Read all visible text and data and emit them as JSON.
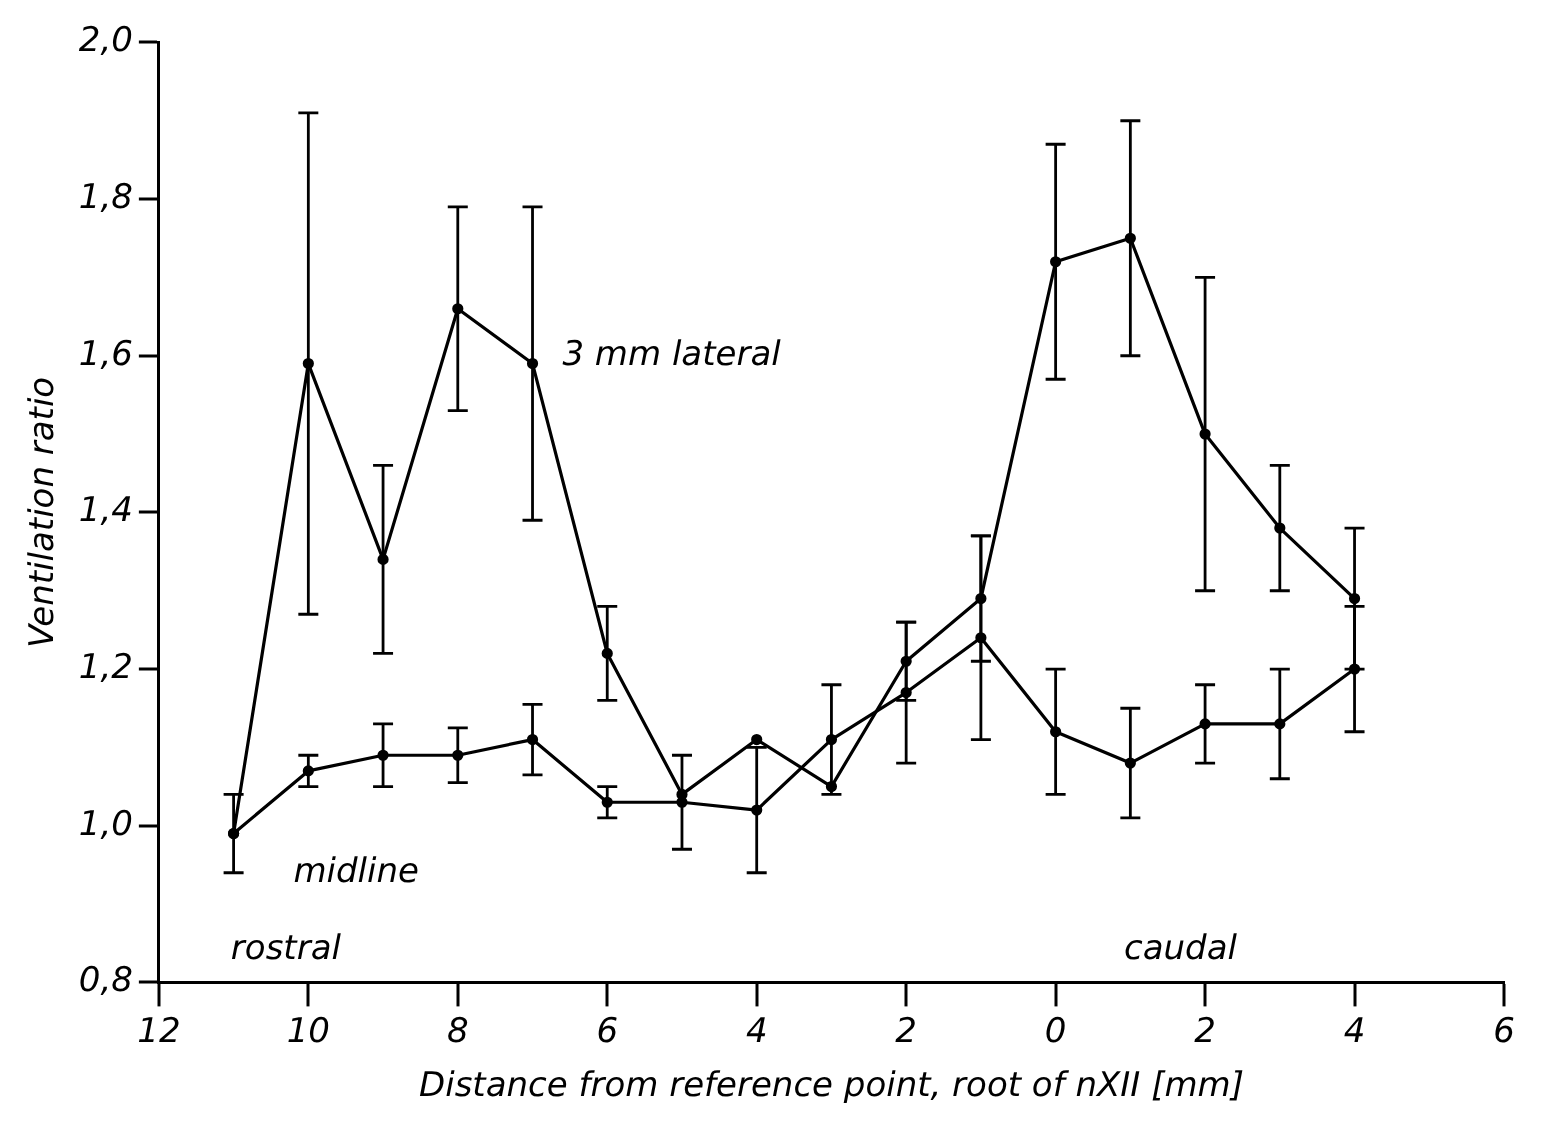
{
  "chart_data": {
    "type": "line",
    "xlabel": "Distance from reference point, root of nXII [mm]",
    "ylabel": "Ventilation ratio",
    "x": [
      -11,
      -10,
      -9,
      -8,
      -7,
      -6,
      -5,
      -4,
      -3,
      -2,
      -1,
      0,
      1,
      2,
      3,
      4
    ],
    "series": [
      {
        "name": "3 mm lateral",
        "color": "#000000",
        "values": [
          0.99,
          1.59,
          1.34,
          1.66,
          1.59,
          1.22,
          1.04,
          1.11,
          1.05,
          1.21,
          1.29,
          1.72,
          1.75,
          1.5,
          1.38,
          1.29
        ],
        "errors": [
          null,
          0.32,
          0.12,
          0.13,
          0.2,
          0.06,
          null,
          null,
          null,
          0.05,
          0.08,
          0.15,
          0.15,
          0.2,
          0.08,
          0.09
        ]
      },
      {
        "name": "midline",
        "color": "#000000",
        "values": [
          0.99,
          1.07,
          1.09,
          1.09,
          1.11,
          1.03,
          1.03,
          1.02,
          1.11,
          1.17,
          1.24,
          1.12,
          1.08,
          1.13,
          1.13,
          1.2
        ],
        "errors": [
          0.05,
          0.02,
          0.04,
          0.035,
          0.045,
          0.02,
          0.06,
          0.08,
          0.07,
          0.09,
          0.13,
          0.08,
          0.07,
          0.05,
          0.07,
          0.08
        ]
      }
    ],
    "annotations": [
      "rostral",
      "caudal"
    ],
    "xlim": [
      -12,
      6
    ],
    "xticks": [
      {
        "value": -12,
        "label": "12"
      },
      {
        "value": -10,
        "label": "10"
      },
      {
        "value": -8,
        "label": "8"
      },
      {
        "value": -6,
        "label": "6"
      },
      {
        "value": -4,
        "label": "4"
      },
      {
        "value": -2,
        "label": "2"
      },
      0,
      2,
      4,
      6
    ],
    "ylim": [
      0.8,
      2.0
    ],
    "yticks": [
      {
        "value": 0.8,
        "label": "0,8"
      },
      {
        "value": 1.0,
        "label": "1,0"
      },
      {
        "value": 1.2,
        "label": "1,2"
      },
      {
        "value": 1.4,
        "label": "1,4"
      },
      {
        "value": 1.6,
        "label": "1,6"
      },
      {
        "value": 1.8,
        "label": "1,8"
      },
      {
        "value": 2.0,
        "label": "2,0"
      }
    ],
    "grid": false,
    "legend": false,
    "marker": "circle",
    "line_style": "solid"
  }
}
